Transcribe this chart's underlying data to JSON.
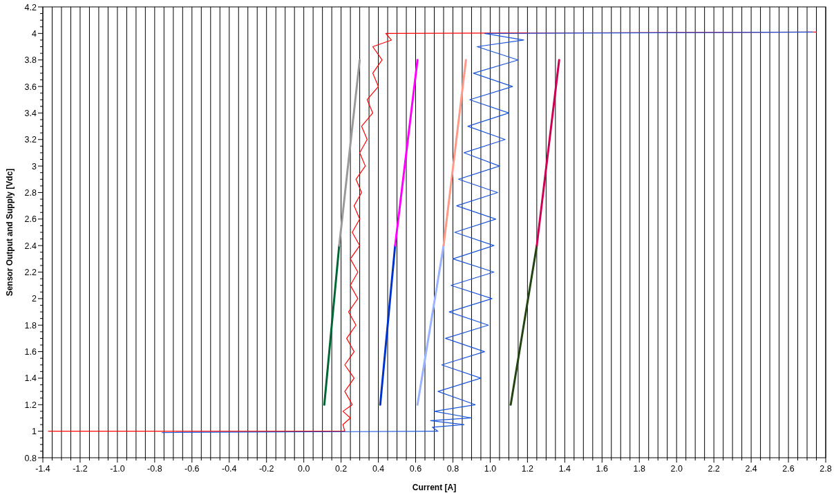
{
  "chart_data": {
    "type": "line",
    "xlabel": "Current [A]",
    "ylabel": "Sensor Output and Supply [Vdc]",
    "xlim": [
      -1.4,
      2.8
    ],
    "ylim": [
      0.8,
      4.2
    ],
    "grid": "x",
    "line_style": "solid",
    "marker": "none",
    "xticks": [
      -1.4,
      {
        "value": -1.35,
        "label": null
      },
      {
        "value": -1.3,
        "label": null
      },
      {
        "value": -1.25,
        "label": null
      },
      -1.2,
      {
        "value": -1.15,
        "label": null
      },
      {
        "value": -1.1,
        "label": null
      },
      {
        "value": -1.05,
        "label": null
      },
      {
        "value": -1.0,
        "label": "-1.0"
      },
      {
        "value": -0.95,
        "label": null
      },
      {
        "value": -0.9,
        "label": null
      },
      {
        "value": -0.85,
        "label": null
      },
      -0.8,
      {
        "value": -0.75,
        "label": null
      },
      {
        "value": -0.7,
        "label": null
      },
      {
        "value": -0.65,
        "label": null
      },
      -0.6,
      {
        "value": -0.55,
        "label": null
      },
      {
        "value": -0.5,
        "label": null
      },
      {
        "value": -0.45,
        "label": null
      },
      -0.4,
      {
        "value": -0.35,
        "label": null
      },
      {
        "value": -0.3,
        "label": null
      },
      {
        "value": -0.25,
        "label": null
      },
      -0.2,
      {
        "value": -0.15,
        "label": null
      },
      {
        "value": -0.1,
        "label": null
      },
      {
        "value": -0.05,
        "label": null
      },
      {
        "value": 0,
        "label": "0.0"
      },
      {
        "value": 0.05,
        "label": null
      },
      {
        "value": 0.1,
        "label": null
      },
      {
        "value": 0.15,
        "label": null
      },
      0.2,
      {
        "value": 0.25,
        "label": null
      },
      {
        "value": 0.3,
        "label": null
      },
      {
        "value": 0.35,
        "label": null
      },
      0.4,
      {
        "value": 0.45,
        "label": null
      },
      {
        "value": 0.5,
        "label": null
      },
      {
        "value": 0.55,
        "label": null
      },
      0.6,
      {
        "value": 0.65,
        "label": null
      },
      {
        "value": 0.7,
        "label": null
      },
      {
        "value": 0.75,
        "label": null
      },
      0.8,
      {
        "value": 0.85,
        "label": null
      },
      {
        "value": 0.9,
        "label": null
      },
      {
        "value": 0.95,
        "label": null
      },
      {
        "value": 1,
        "label": "1.0"
      },
      {
        "value": 1.05,
        "label": null
      },
      {
        "value": 1.1,
        "label": null
      },
      {
        "value": 1.15,
        "label": null
      },
      1.2,
      {
        "value": 1.25,
        "label": null
      },
      {
        "value": 1.3,
        "label": null
      },
      {
        "value": 1.35,
        "label": null
      },
      1.4,
      {
        "value": 1.45,
        "label": null
      },
      {
        "value": 1.5,
        "label": null
      },
      {
        "value": 1.55,
        "label": null
      },
      1.6,
      {
        "value": 1.65,
        "label": null
      },
      {
        "value": 1.7,
        "label": null
      },
      {
        "value": 1.75,
        "label": null
      },
      1.8,
      {
        "value": 1.85,
        "label": null
      },
      {
        "value": 1.9,
        "label": null
      },
      {
        "value": 1.95,
        "label": null
      },
      {
        "value": 2,
        "label": "2.0"
      },
      {
        "value": 2.05,
        "label": null
      },
      {
        "value": 2.1,
        "label": null
      },
      {
        "value": 2.15,
        "label": null
      },
      2.2,
      {
        "value": 2.25,
        "label": null
      },
      {
        "value": 2.3,
        "label": null
      },
      {
        "value": 2.35,
        "label": null
      },
      2.4,
      {
        "value": 2.45,
        "label": null
      },
      {
        "value": 2.5,
        "label": null
      },
      {
        "value": 2.55,
        "label": null
      },
      2.6,
      {
        "value": 2.65,
        "label": null
      },
      {
        "value": 2.7,
        "label": null
      },
      {
        "value": 2.75,
        "label": null
      },
      2.8
    ],
    "yticks": [
      0.8,
      {
        "value": 0.85,
        "label": null
      },
      {
        "value": 0.9,
        "label": null
      },
      {
        "value": 0.95,
        "label": null
      },
      1,
      {
        "value": 1.05,
        "label": null
      },
      {
        "value": 1.1,
        "label": null
      },
      {
        "value": 1.15,
        "label": null
      },
      1.2,
      {
        "value": 1.25,
        "label": null
      },
      {
        "value": 1.3,
        "label": null
      },
      {
        "value": 1.35,
        "label": null
      },
      1.4,
      {
        "value": 1.45,
        "label": null
      },
      {
        "value": 1.5,
        "label": null
      },
      {
        "value": 1.55,
        "label": null
      },
      1.6,
      {
        "value": 1.65,
        "label": null
      },
      {
        "value": 1.7,
        "label": null
      },
      {
        "value": 1.75,
        "label": null
      },
      1.8,
      {
        "value": 1.85,
        "label": null
      },
      {
        "value": 1.9,
        "label": null
      },
      {
        "value": 1.95,
        "label": null
      },
      2,
      {
        "value": 2.05,
        "label": null
      },
      {
        "value": 2.1,
        "label": null
      },
      {
        "value": 2.15,
        "label": null
      },
      2.2,
      {
        "value": 2.25,
        "label": null
      },
      {
        "value": 2.3,
        "label": null
      },
      {
        "value": 2.35,
        "label": null
      },
      2.4,
      {
        "value": 2.45,
        "label": null
      },
      {
        "value": 2.5,
        "label": null
      },
      {
        "value": 2.55,
        "label": null
      },
      2.6,
      {
        "value": 2.65,
        "label": null
      },
      {
        "value": 2.7,
        "label": null
      },
      {
        "value": 2.75,
        "label": null
      },
      2.8,
      {
        "value": 2.85,
        "label": null
      },
      {
        "value": 2.9,
        "label": null
      },
      {
        "value": 2.95,
        "label": null
      },
      3,
      {
        "value": 3.05,
        "label": null
      },
      {
        "value": 3.1,
        "label": null
      },
      {
        "value": 3.15,
        "label": null
      },
      3.2,
      {
        "value": 3.25,
        "label": null
      },
      {
        "value": 3.3,
        "label": null
      },
      {
        "value": 3.35,
        "label": null
      },
      3.4,
      {
        "value": 3.45,
        "label": null
      },
      {
        "value": 3.5,
        "label": null
      },
      {
        "value": 3.55,
        "label": null
      },
      3.6,
      {
        "value": 3.65,
        "label": null
      },
      {
        "value": 3.7,
        "label": null
      },
      {
        "value": 3.75,
        "label": null
      },
      3.8,
      {
        "value": 3.85,
        "label": null
      },
      {
        "value": 3.9,
        "label": null
      },
      {
        "value": 3.95,
        "label": null
      },
      4,
      {
        "value": 4.05,
        "label": null
      },
      {
        "value": 4.1,
        "label": null
      },
      {
        "value": 4.15,
        "label": null
      },
      4.2
    ],
    "series": [
      {
        "color": "#ff0000",
        "x": [
          -1.37,
          0.22,
          0.21,
          0.25,
          0.21,
          0.26,
          0.22,
          0.27,
          0.22,
          0.27,
          0.23,
          0.28,
          0.24,
          0.29,
          0.25,
          0.29,
          0.25,
          0.3,
          0.26,
          0.3,
          0.27,
          0.31,
          0.28,
          0.33,
          0.3,
          0.34,
          0.31,
          0.37,
          0.34,
          0.4,
          0.37,
          0.42,
          0.37,
          0.47,
          0.44,
          2.75
        ],
        "values": [
          1.0,
          1.0,
          1.05,
          1.1,
          1.15,
          1.2,
          1.3,
          1.4,
          1.5,
          1.6,
          1.7,
          1.8,
          1.9,
          2.0,
          2.1,
          2.2,
          2.3,
          2.4,
          2.5,
          2.6,
          2.7,
          2.8,
          2.9,
          3.0,
          3.1,
          3.2,
          3.3,
          3.4,
          3.5,
          3.6,
          3.7,
          3.8,
          3.9,
          3.95,
          4.0,
          4.01
        ]
      },
      {
        "color": "#1a56db",
        "x": [
          -0.76,
          0.72,
          0.69,
          0.86,
          0.68,
          0.9,
          0.7,
          0.92,
          0.72,
          0.95,
          0.74,
          0.97,
          0.76,
          0.99,
          0.78,
          1.01,
          0.79,
          1.02,
          0.8,
          1.02,
          0.81,
          1.03,
          0.82,
          1.04,
          0.83,
          1.05,
          0.86,
          1.08,
          0.88,
          1.1,
          0.89,
          1.12,
          0.91,
          1.15,
          0.93,
          1.18,
          0.97,
          2.73
        ],
        "values": [
          0.99,
          1.0,
          1.03,
          1.05,
          1.08,
          1.1,
          1.15,
          1.2,
          1.3,
          1.4,
          1.5,
          1.6,
          1.7,
          1.8,
          1.9,
          2.0,
          2.1,
          2.2,
          2.3,
          2.4,
          2.5,
          2.6,
          2.7,
          2.8,
          2.9,
          3.0,
          3.1,
          3.2,
          3.3,
          3.4,
          3.5,
          3.6,
          3.7,
          3.8,
          3.9,
          3.95,
          4.0,
          4.01
        ]
      },
      {
        "color": "#006633",
        "x": [
          0.11,
          0.19
        ],
        "values": [
          1.2,
          2.4
        ]
      },
      {
        "color": "#999999",
        "x": [
          0.19,
          0.3
        ],
        "values": [
          2.4,
          3.8
        ]
      },
      {
        "color": "#0033cc",
        "x": [
          0.41,
          0.49
        ],
        "values": [
          1.2,
          2.4
        ]
      },
      {
        "color": "#ff00ff",
        "x": [
          0.49,
          0.61
        ],
        "values": [
          2.4,
          3.8
        ]
      },
      {
        "color": "#99b3ff",
        "x": [
          0.61,
          0.75
        ],
        "values": [
          1.2,
          2.4
        ]
      },
      {
        "color": "#ff9988",
        "x": [
          0.75,
          0.87
        ],
        "values": [
          2.4,
          3.8
        ]
      },
      {
        "color": "#224411",
        "x": [
          1.11,
          1.25
        ],
        "values": [
          1.2,
          2.4
        ]
      },
      {
        "color": "#cc0055",
        "x": [
          1.25,
          1.37
        ],
        "values": [
          2.4,
          3.8
        ]
      }
    ]
  }
}
